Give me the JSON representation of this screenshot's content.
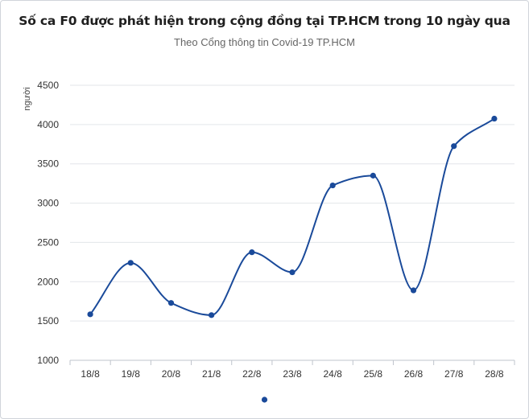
{
  "chart_data": {
    "type": "line",
    "title": "Số ca F0 được phát hiện trong cộng đồng tại TP.HCM trong 10 ngày qua",
    "subtitle": "Theo Cổng thông tin Covid-19 TP.HCM",
    "xlabel": "",
    "ylabel": "người",
    "ylim": [
      1000,
      4500
    ],
    "yticks": [
      1000,
      1500,
      2000,
      2500,
      3000,
      3500,
      4000,
      4500
    ],
    "categories": [
      "18/8",
      "19/8",
      "20/8",
      "21/8",
      "22/8",
      "23/8",
      "24/8",
      "25/8",
      "26/8",
      "27/8",
      "28/8"
    ],
    "series": [
      {
        "values": [
          1585,
          2240,
          1730,
          1575,
          2375,
          2120,
          3225,
          3350,
          1890,
          3725,
          4075
        ],
        "color": "#1a4a9a"
      }
    ],
    "grid": true,
    "smooth": true,
    "legend": "bottom"
  }
}
